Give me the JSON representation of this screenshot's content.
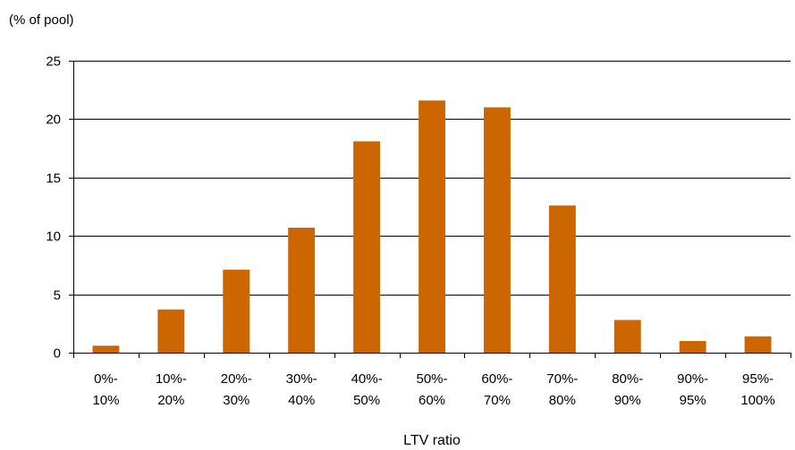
{
  "chart_data": {
    "type": "bar",
    "ylabel": "(% of pool)",
    "xlabel": "LTV ratio",
    "categories": [
      [
        "0%-",
        "10%"
      ],
      [
        "10%-",
        "20%"
      ],
      [
        "20%-",
        "30%"
      ],
      [
        "30%-",
        "40%"
      ],
      [
        "40%-",
        "50%"
      ],
      [
        "50%-",
        "60%"
      ],
      [
        "60%-",
        "70%"
      ],
      [
        "70%-",
        "80%"
      ],
      [
        "80%-",
        "90%"
      ],
      [
        "90%-",
        "95%"
      ],
      [
        "95%-",
        "100%"
      ]
    ],
    "values": [
      0.6,
      3.7,
      7.1,
      10.7,
      18.1,
      21.6,
      21.0,
      12.6,
      2.8,
      1.0,
      1.4
    ],
    "ylim": [
      0,
      25
    ],
    "yticks": [
      "0",
      "5",
      "10",
      "15",
      "20",
      "25"
    ],
    "grid": true,
    "bar_color": "#cc6600"
  }
}
